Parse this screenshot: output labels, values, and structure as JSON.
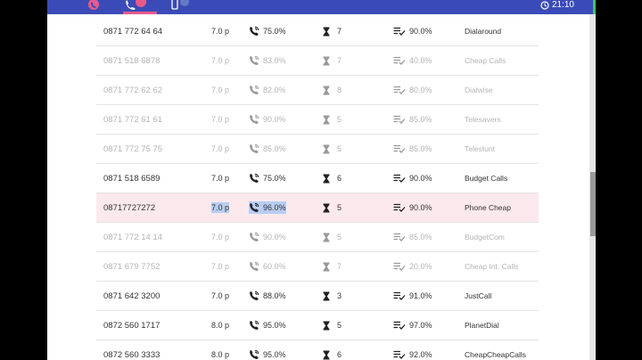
{
  "status_bar": {
    "time": "21:10"
  },
  "tabs": [
    {
      "icon": "phone-off-icon",
      "active": false
    },
    {
      "icon": "phone-call-icon",
      "active": true
    },
    {
      "icon": "mobile-phone-icon",
      "active": false
    }
  ],
  "colors": {
    "appbar": "#3a4bb8",
    "accent": "#e85a8c",
    "highlight": "#fce9ee",
    "selection": "#b8cdf2"
  },
  "rows": [
    {
      "number": "0871 772 64 64",
      "price": "7.0 p",
      "success": "75.0%",
      "wait": "7",
      "quality": "90.0%",
      "provider": "Dialaround",
      "dim": false
    },
    {
      "number": "0871 518 6878",
      "price": "7.0 p",
      "success": "83.0%",
      "wait": "7",
      "quality": "40.0%",
      "provider": "Cheap Calls",
      "dim": true
    },
    {
      "number": "0871 772 62 62",
      "price": "7.0 p",
      "success": "82.0%",
      "wait": "8",
      "quality": "80.0%",
      "provider": "Dialwise",
      "dim": true
    },
    {
      "number": "0871 772 61 61",
      "price": "7.0 p",
      "success": "90.0%",
      "wait": "5",
      "quality": "85.0%",
      "provider": "Telesavers",
      "dim": true
    },
    {
      "number": "0871 772 75 75",
      "price": "7.0 p",
      "success": "85.0%",
      "wait": "5",
      "quality": "85.0%",
      "provider": "Telestunt",
      "dim": true
    },
    {
      "number": "0871 518 6589",
      "price": "7.0 p",
      "success": "75.0%",
      "wait": "6",
      "quality": "90.0%",
      "provider": "Budget Calls",
      "dim": false
    },
    {
      "number": "08717727272",
      "price": "7.0 p",
      "success": "96.0%",
      "wait": "5",
      "quality": "90.0%",
      "provider": "Phone Cheap",
      "dim": false,
      "highlighted": true
    },
    {
      "number": "0871 772 14 14",
      "price": "7.0 p",
      "success": "90.0%",
      "wait": "5",
      "quality": "85.0%",
      "provider": "BudgetCom",
      "dim": true
    },
    {
      "number": "0871 679 7752",
      "price": "7.0 p",
      "success": "60.0%",
      "wait": "7",
      "quality": "20.0%",
      "provider": "Cheap Int. Calls",
      "dim": true
    },
    {
      "number": "0871 642 3200",
      "price": "7.0 p",
      "success": "88.0%",
      "wait": "3",
      "quality": "91.0%",
      "provider": "JustCall",
      "dim": false
    },
    {
      "number": "0872 560 1717",
      "price": "8.0 p",
      "success": "95.0%",
      "wait": "5",
      "quality": "97.0%",
      "provider": "PlanetDial",
      "dim": false
    },
    {
      "number": "0872 560 3333",
      "price": "8.0 p",
      "success": "95.0%",
      "wait": "6",
      "quality": "92.0%",
      "provider": "CheapCheapCalls",
      "dim": false
    }
  ]
}
